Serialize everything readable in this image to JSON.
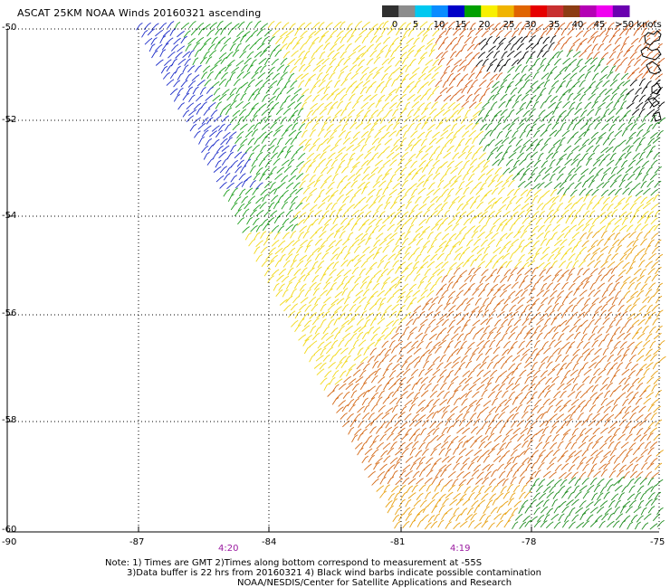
{
  "title": "ASCAT 25KM NOAA Winds 20160321 ascending",
  "legend": {
    "ticks": [
      "0",
      "5",
      "10",
      "15",
      "20",
      "25",
      "30",
      "35",
      "40",
      "45",
      ">50 knots"
    ],
    "colors": [
      "#303030",
      "#8c8c8c",
      "#00c8f0",
      "#0a8cff",
      "#0000c8",
      "#00a000",
      "#f8f000",
      "#f0b400",
      "#e06400",
      "#e60000",
      "#c83030",
      "#8c3c14",
      "#b400b4",
      "#f000f0",
      "#6a00b0"
    ]
  },
  "axes": {
    "x_labels": [
      "-90",
      "-87",
      "-84",
      "-81",
      "-78",
      "-75"
    ],
    "y_labels": [
      "-50",
      "-52",
      "-54",
      "-56",
      "-58",
      "-60"
    ]
  },
  "times": [
    "4:20",
    "4:19"
  ],
  "notes": [
    "Note: 1) Times are GMT 2)Times along bottom correspond to measurement at -55S",
    "3)Data buffer is 22 hrs from 20160321 4) Black wind barbs indicate possible contamination",
    "NOAA/NESDIS/Center for Satellite Applications and Research"
  ]
}
